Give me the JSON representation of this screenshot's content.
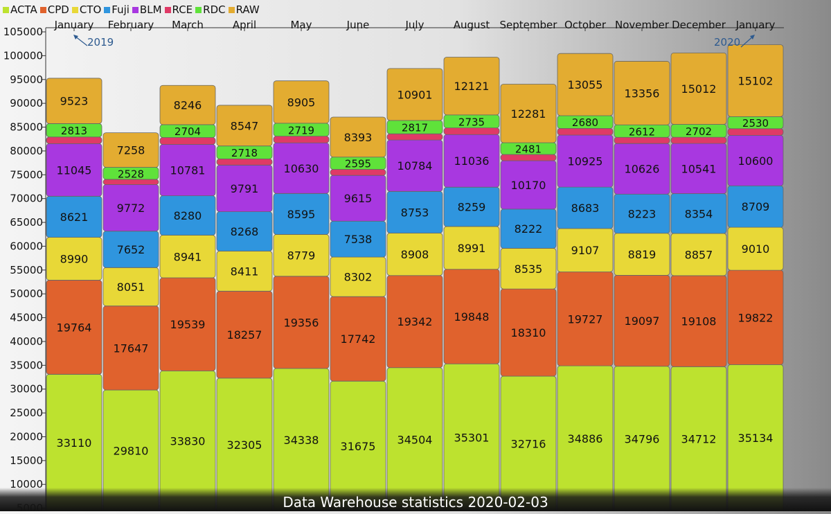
{
  "title": "Data Warehouse statistics 2020-02-03",
  "chart_data": {
    "type": "bar",
    "stacked": true,
    "title": "Data Warehouse statistics 2020-02-03",
    "categories": [
      "January",
      "February",
      "March",
      "April",
      "May",
      "June",
      "July",
      "August",
      "September",
      "October",
      "November",
      "December",
      "January"
    ],
    "ylim": [
      0,
      105000
    ],
    "yticks": [
      5000,
      10000,
      15000,
      20000,
      25000,
      30000,
      35000,
      40000,
      45000,
      50000,
      55000,
      60000,
      65000,
      70000,
      75000,
      80000,
      85000,
      90000,
      95000,
      100000,
      105000
    ],
    "grid": false,
    "legend_position": "top-left",
    "annotations": [
      {
        "text": "2019",
        "category_index": 0
      },
      {
        "text": "2020",
        "category_index": 12
      }
    ],
    "series": [
      {
        "name": "ACTA",
        "color": "#bde22f",
        "values": [
          33110,
          29810,
          33830,
          32305,
          34338,
          31675,
          34504,
          35301,
          32716,
          34886,
          34796,
          34712,
          35134
        ]
      },
      {
        "name": "CPD",
        "color": "#e0622d",
        "values": [
          19764,
          17647,
          19539,
          18257,
          19356,
          17742,
          19342,
          19848,
          18310,
          19727,
          19097,
          19108,
          19822
        ]
      },
      {
        "name": "CTO",
        "color": "#e8d837",
        "values": [
          8990,
          8051,
          8941,
          8411,
          8779,
          8302,
          8908,
          8991,
          8535,
          9107,
          8819,
          8857,
          9010
        ]
      },
      {
        "name": "Fuji",
        "color": "#2f95de",
        "values": [
          8621,
          7652,
          8280,
          8268,
          8595,
          7538,
          8753,
          8259,
          8222,
          8683,
          8223,
          8354,
          8709
        ]
      },
      {
        "name": "BLM",
        "color": "#a838e0",
        "values": [
          11045,
          9772,
          10781,
          9791,
          10630,
          9615,
          10784,
          11036,
          10170,
          10925,
          10626,
          10541,
          10600
        ]
      },
      {
        "name": "RCE",
        "color": "#df3a66",
        "values": [
          1400,
          1100,
          1450,
          1300,
          1400,
          1250,
          1300,
          1400,
          1300,
          1400,
          1300,
          1300,
          1400
        ]
      },
      {
        "name": "RDC",
        "color": "#5fe23a",
        "values": [
          2813,
          2528,
          2704,
          2718,
          2719,
          2595,
          2817,
          2735,
          2481,
          2680,
          2612,
          2702,
          2530
        ]
      },
      {
        "name": "RAW",
        "color": "#e3ac31",
        "values": [
          9523,
          7258,
          8246,
          8547,
          8905,
          8393,
          10901,
          12121,
          12281,
          13055,
          13356,
          15012,
          15102
        ]
      }
    ],
    "labeled_series": [
      "ACTA",
      "CPD",
      "CTO",
      "Fuji",
      "BLM",
      "RDC",
      "RAW"
    ]
  }
}
